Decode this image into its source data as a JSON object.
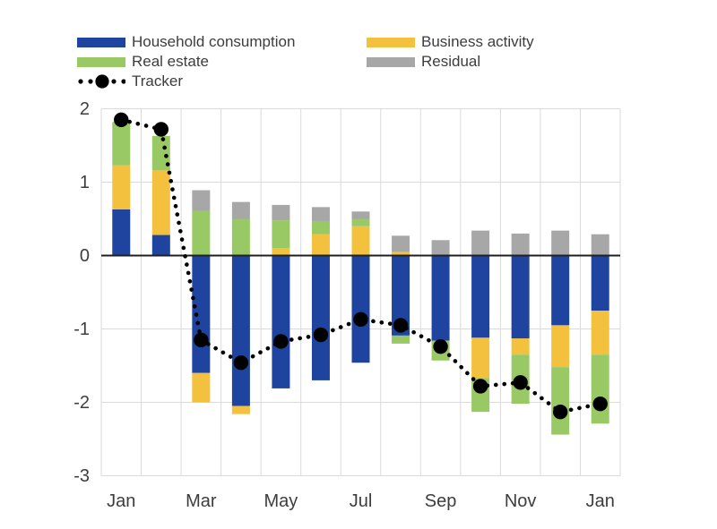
{
  "figure": {
    "background": "#ffffff"
  },
  "legend": {
    "position": "top-left",
    "items": [
      {
        "label": "Household consumption",
        "color": "#1F44A0",
        "type": "bar"
      },
      {
        "label": "Business activity",
        "color": "#F3C13E",
        "type": "bar"
      },
      {
        "label": "Real estate",
        "color": "#98C965",
        "type": "bar"
      },
      {
        "label": "Residual",
        "color": "#A7A7A7",
        "type": "bar"
      },
      {
        "label": "Tracker",
        "color": "#000000",
        "type": "dotted-line"
      }
    ]
  },
  "chart_data": {
    "type": "bar",
    "subtype": "stacked-bar-with-line",
    "title": "",
    "xlabel": "",
    "ylabel": "",
    "categories": [
      "Jan",
      "Feb",
      "Mar",
      "Apr",
      "May",
      "Jun",
      "Jul",
      "Aug",
      "Sep",
      "Oct",
      "Nov",
      "Dec",
      "Jan"
    ],
    "x_tick_indices": [
      0,
      2,
      4,
      6,
      8,
      10,
      12
    ],
    "x_tick_labels": [
      "Jan",
      "Mar",
      "May",
      "Jul",
      "Sep",
      "Nov",
      "Jan"
    ],
    "y_ticks": [
      2,
      1,
      0,
      -1,
      -2,
      -3
    ],
    "y_tick_labels": [
      "2",
      "1",
      "0",
      "-1",
      "-2",
      "-3"
    ],
    "ylim": [
      -3,
      2
    ],
    "grid": true,
    "gridline_color": "#DADADA",
    "zero_line_color": "#1f1f1f",
    "axis_text_color": "#3d3d3d",
    "series": [
      {
        "name": "Household consumption",
        "color": "#1F44A0",
        "values": [
          0.63,
          0.28,
          -1.6,
          -2.05,
          -1.81,
          -1.7,
          -1.46,
          -1.09,
          -1.16,
          -1.12,
          -1.13,
          -0.95,
          -0.75
        ]
      },
      {
        "name": "Business activity",
        "color": "#F3C13E",
        "values": [
          0.6,
          0.88,
          -0.4,
          -0.11,
          0.1,
          0.29,
          0.4,
          0.05,
          0.0,
          -0.55,
          -0.22,
          -0.57,
          -0.6
        ]
      },
      {
        "name": "Real estate",
        "color": "#98C965",
        "values": [
          0.59,
          0.47,
          0.61,
          0.5,
          0.38,
          0.18,
          0.1,
          -0.11,
          -0.27,
          -0.46,
          -0.67,
          -0.92,
          -0.94
        ]
      },
      {
        "name": "Residual",
        "color": "#A7A7A7",
        "values": [
          0.0,
          0.0,
          0.28,
          0.23,
          0.21,
          0.19,
          0.1,
          0.22,
          0.21,
          0.34,
          0.3,
          0.34,
          0.29
        ]
      }
    ],
    "tracker": {
      "name": "Tracker",
      "color": "#000000",
      "values": [
        1.85,
        1.72,
        -1.15,
        -1.46,
        -1.17,
        -1.08,
        -0.87,
        -0.95,
        -1.24,
        -1.78,
        -1.73,
        -2.13,
        -2.02
      ]
    }
  }
}
